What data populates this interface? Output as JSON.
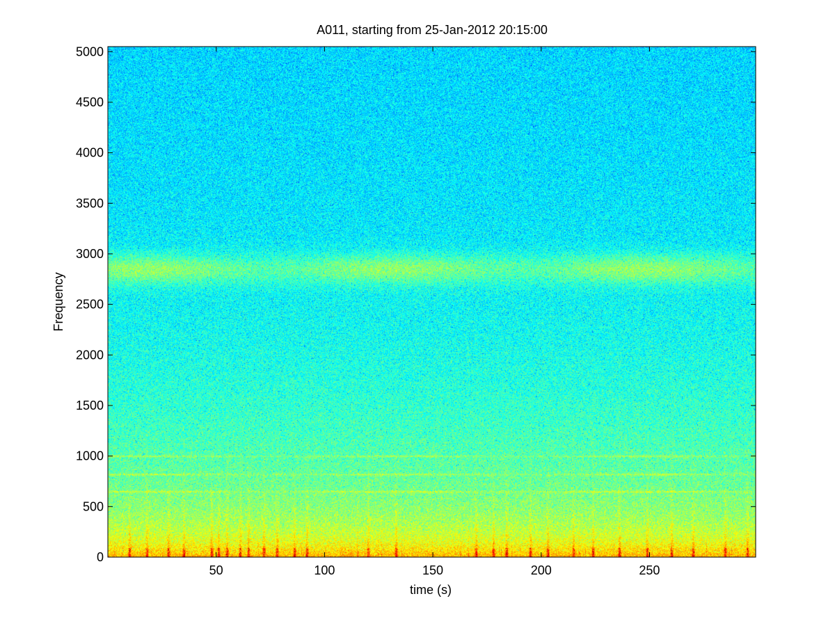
{
  "chart_data": {
    "type": "heatmap",
    "title": "A011, starting from 25-Jan-2012 20:15:00",
    "xlabel": "time (s)",
    "ylabel": "Frequency",
    "xlim": [
      0,
      299
    ],
    "ylim": [
      0,
      5050
    ],
    "x_ticks": [
      50,
      100,
      150,
      200,
      250
    ],
    "y_ticks": [
      0,
      500,
      1000,
      1500,
      2000,
      2500,
      3000,
      3500,
      4000,
      4500,
      5000
    ],
    "colormap": "jet",
    "grid": false,
    "legend": "none",
    "features": {
      "yellow_band_hz": [
        2700,
        3000
      ],
      "tonal_lines_hz": [
        650,
        820,
        1000
      ],
      "low_freq_energy_hz": [
        0,
        500
      ],
      "transient_times_s": [
        10,
        18,
        28,
        35,
        48,
        51,
        55,
        61,
        65,
        72,
        78,
        86,
        92,
        120,
        133,
        170,
        178,
        184,
        195,
        203,
        215,
        224,
        236,
        249,
        260,
        270,
        285,
        295
      ]
    },
    "colors": {
      "cyan": "#1de4dc",
      "green": "#62f08a",
      "yellow": "#e8ee1e",
      "red": "#c8141a",
      "noise_blue": "#1c8cf0"
    }
  }
}
